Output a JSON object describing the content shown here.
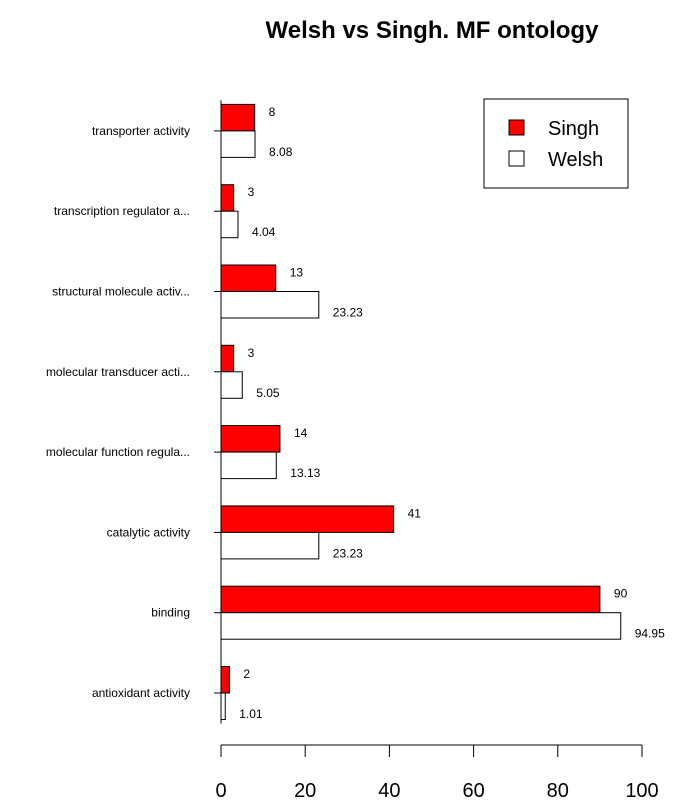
{
  "chart_data": {
    "type": "bar",
    "orientation": "horizontal",
    "title": "Welsh vs Singh. MF ontology",
    "xlabel": "",
    "ylabel": "",
    "categories": [
      "antioxidant activity",
      "binding",
      "catalytic activity",
      "molecular function regula...",
      "molecular transducer acti...",
      "structural molecule activ...",
      "transcription regulator a...",
      "transporter activity"
    ],
    "series": [
      {
        "name": "Singh",
        "color": "#ff0000",
        "values": [
          2,
          90,
          41,
          14,
          3,
          13,
          3,
          8
        ]
      },
      {
        "name": "Welsh",
        "color": "#ffffff",
        "values": [
          1.01,
          94.95,
          23.23,
          13.13,
          5.05,
          23.23,
          4.04,
          8.08
        ]
      }
    ],
    "value_labels": {
      "Singh": [
        "2",
        "90",
        "41",
        "14",
        "3",
        "13",
        "3",
        "8"
      ],
      "Welsh": [
        "1.01",
        "94.95",
        "23.23",
        "13.13",
        "5.05",
        "23.23",
        "4.04",
        "8.08"
      ]
    },
    "xlim": [
      0,
      100
    ],
    "xticks": [
      0,
      20,
      40,
      60,
      80,
      100
    ],
    "grid": false,
    "legend_position": "top-right"
  }
}
